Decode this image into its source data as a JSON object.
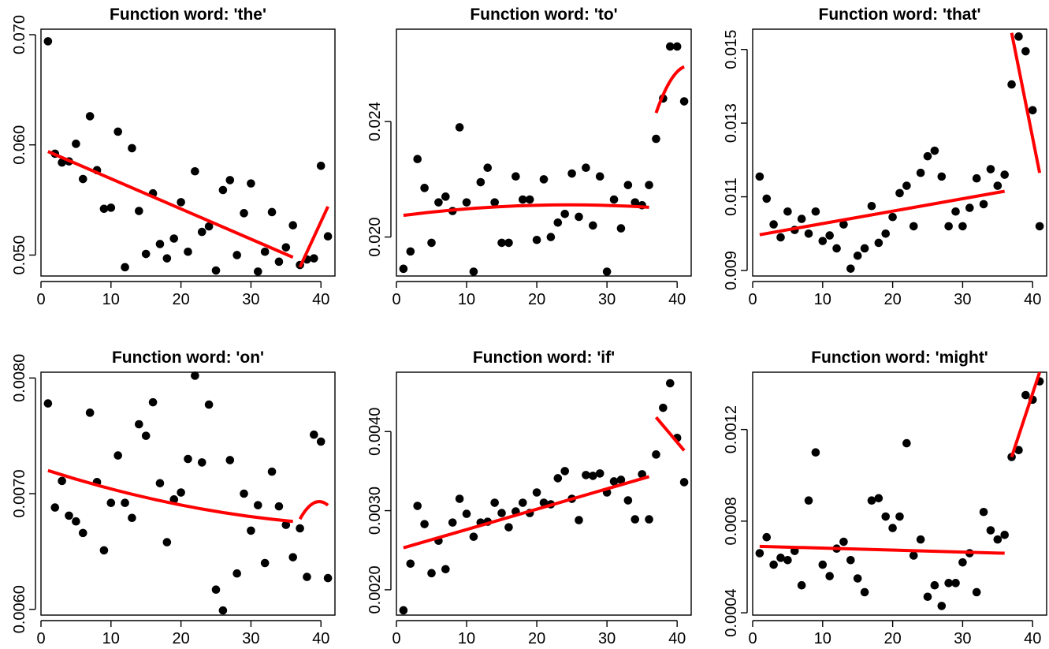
{
  "chart_data": [
    {
      "type": "scatter",
      "title": "Function word: 'the'",
      "xlim": [
        0,
        42
      ],
      "ylim": [
        0.0481,
        0.0705
      ],
      "x_ticks": [
        0,
        10,
        20,
        30,
        40
      ],
      "y_ticks": [
        0.05,
        0.06,
        0.07
      ],
      "y_tick_labels": [
        "0.050",
        "0.060",
        "0.070"
      ],
      "points": {
        "x": [
          1,
          2,
          3,
          4,
          5,
          6,
          7,
          8,
          9,
          10,
          11,
          12,
          13,
          14,
          15,
          16,
          17,
          18,
          19,
          20,
          21,
          22,
          23,
          24,
          25,
          26,
          27,
          28,
          29,
          30,
          31,
          32,
          33,
          34,
          35,
          36,
          37,
          38,
          39,
          40,
          41
        ],
        "y": [
          0.0694,
          0.0592,
          0.0584,
          0.0585,
          0.0601,
          0.0569,
          0.0626,
          0.0577,
          0.0542,
          0.0543,
          0.0612,
          0.0489,
          0.0597,
          0.054,
          0.0501,
          0.0556,
          0.051,
          0.0497,
          0.0515,
          0.0548,
          0.0503,
          0.0576,
          0.0521,
          0.0526,
          0.0486,
          0.0559,
          0.0568,
          0.05,
          0.0538,
          0.0565,
          0.0485,
          0.0503,
          0.0539,
          0.0494,
          0.0507,
          0.0527,
          0.0491,
          0.0496,
          0.0497,
          0.0581,
          0.0517
        ]
      },
      "fits": [
        {
          "x": [
            1,
            36
          ],
          "y": [
            0.0594,
            0.0498
          ],
          "curvature": 0
        },
        {
          "x": [
            37,
            41
          ],
          "y": [
            0.0489,
            0.0544
          ],
          "curvature": 0
        }
      ]
    },
    {
      "type": "scatter",
      "title": "Function word: 'to'",
      "xlim": [
        0,
        42
      ],
      "ylim": [
        0.01865,
        0.0272
      ],
      "x_ticks": [
        0,
        10,
        20,
        30,
        40
      ],
      "y_ticks": [
        0.02,
        0.024
      ],
      "y_tick_labels": [
        "0.020",
        "0.024"
      ],
      "points": {
        "x": [
          1,
          2,
          3,
          4,
          5,
          6,
          7,
          8,
          9,
          10,
          11,
          12,
          13,
          14,
          15,
          16,
          17,
          18,
          19,
          20,
          21,
          22,
          23,
          24,
          25,
          26,
          27,
          28,
          29,
          30,
          31,
          32,
          33,
          34,
          35,
          36,
          37,
          38,
          39,
          40,
          41
        ],
        "y": [
          0.0189,
          0.0195,
          0.0227,
          0.0217,
          0.0198,
          0.0212,
          0.0214,
          0.0209,
          0.0238,
          0.0212,
          0.0188,
          0.0219,
          0.0224,
          0.0212,
          0.0198,
          0.0198,
          0.0221,
          0.0213,
          0.0213,
          0.0199,
          0.022,
          0.02,
          0.0205,
          0.0208,
          0.0222,
          0.0207,
          0.0224,
          0.0204,
          0.0221,
          0.0188,
          0.0213,
          0.0203,
          0.0218,
          0.0212,
          0.0211,
          0.0218,
          0.0234,
          0.0248,
          0.0266,
          0.0266,
          0.0247
        ]
      },
      "fits": [
        {
          "x": [
            1,
            36
          ],
          "y": [
            0.02075,
            0.02103
          ],
          "curvature": 0.0002
        },
        {
          "x": [
            37,
            41
          ],
          "y": [
            0.0243,
            0.0259
          ],
          "curvature": 0.0003
        }
      ]
    },
    {
      "type": "scatter",
      "title": "Function word: 'that'",
      "xlim": [
        0,
        42
      ],
      "ylim": [
        0.00885,
        0.01555
      ],
      "x_ticks": [
        0,
        10,
        20,
        30,
        40
      ],
      "y_ticks": [
        0.009,
        0.011,
        0.013,
        0.015
      ],
      "y_tick_labels": [
        "0.009",
        "0.011",
        "0.013",
        "0.015"
      ],
      "points": {
        "x": [
          1,
          2,
          3,
          4,
          5,
          6,
          7,
          8,
          9,
          10,
          11,
          12,
          13,
          14,
          15,
          16,
          17,
          18,
          19,
          20,
          21,
          22,
          23,
          24,
          25,
          26,
          27,
          28,
          29,
          30,
          31,
          32,
          33,
          34,
          35,
          36,
          37,
          38,
          39,
          40,
          41
        ],
        "y": [
          0.01155,
          0.01095,
          0.01025,
          0.0099,
          0.0106,
          0.0101,
          0.0104,
          0.01,
          0.0106,
          0.0098,
          0.00995,
          0.0096,
          0.01025,
          0.00905,
          0.0094,
          0.0096,
          0.01075,
          0.00975,
          0.01,
          0.01045,
          0.0111,
          0.0113,
          0.0102,
          0.01165,
          0.0121,
          0.01225,
          0.01155,
          0.0102,
          0.0106,
          0.0102,
          0.0107,
          0.0115,
          0.0108,
          0.01175,
          0.0113,
          0.0116,
          0.01405,
          0.01535,
          0.01495,
          0.01335,
          0.0102
        ]
      },
      "fits": [
        {
          "x": [
            1,
            36
          ],
          "y": [
            0.00997,
            0.01115
          ],
          "curvature": 0
        },
        {
          "x": [
            37,
            41
          ],
          "y": [
            0.01545,
            0.01165
          ],
          "curvature": 0
        }
      ]
    },
    {
      "type": "scatter",
      "title": "Function word: 'on'",
      "xlim": [
        0,
        42
      ],
      "ylim": [
        0.00595,
        0.00805
      ],
      "x_ticks": [
        0,
        10,
        20,
        30,
        40
      ],
      "y_ticks": [
        0.006,
        0.007,
        0.008
      ],
      "y_tick_labels": [
        "0.0060",
        "0.0070",
        "0.0080"
      ],
      "points": {
        "x": [
          1,
          2,
          3,
          4,
          5,
          6,
          7,
          8,
          9,
          10,
          11,
          12,
          13,
          14,
          15,
          16,
          17,
          18,
          19,
          20,
          21,
          22,
          23,
          24,
          25,
          26,
          27,
          28,
          29,
          30,
          31,
          32,
          33,
          34,
          35,
          36,
          37,
          38,
          39,
          40,
          41
        ],
        "y": [
          0.00778,
          0.00688,
          0.00711,
          0.00681,
          0.00676,
          0.00666,
          0.0077,
          0.0071,
          0.00651,
          0.00692,
          0.00733,
          0.00692,
          0.00679,
          0.0076,
          0.0075,
          0.00779,
          0.00709,
          0.00658,
          0.00695,
          0.00701,
          0.0073,
          0.00802,
          0.00727,
          0.00777,
          0.00617,
          0.00599,
          0.00729,
          0.00631,
          0.007,
          0.00668,
          0.0069,
          0.0064,
          0.00719,
          0.00689,
          0.00673,
          0.00645,
          0.0067,
          0.00628,
          0.00751,
          0.00745,
          0.00627
        ]
      },
      "fits": [
        {
          "x": [
            1,
            36
          ],
          "y": [
            0.0072,
            0.00676
          ],
          "curvature": -6e-05
        },
        {
          "x": [
            37,
            41
          ],
          "y": [
            0.00678,
            0.0069
          ],
          "curvature": 8e-05
        }
      ]
    },
    {
      "type": "scatter",
      "title": "Function word: 'if'",
      "xlim": [
        0,
        42
      ],
      "ylim": [
        0.00168,
        0.00475
      ],
      "x_ticks": [
        0,
        10,
        20,
        30,
        40
      ],
      "y_ticks": [
        0.002,
        0.003,
        0.004
      ],
      "y_tick_labels": [
        "0.0020",
        "0.0030",
        "0.0040"
      ],
      "points": {
        "x": [
          1,
          2,
          3,
          4,
          5,
          6,
          7,
          8,
          9,
          10,
          11,
          12,
          13,
          14,
          15,
          16,
          17,
          18,
          19,
          20,
          21,
          22,
          23,
          24,
          25,
          26,
          27,
          28,
          29,
          30,
          31,
          32,
          33,
          34,
          35,
          36,
          37,
          38,
          39,
          40,
          41
        ],
        "y": [
          0.00174,
          0.00233,
          0.00306,
          0.00283,
          0.00221,
          0.00262,
          0.00226,
          0.00285,
          0.00315,
          0.00296,
          0.00267,
          0.00285,
          0.00286,
          0.0031,
          0.00297,
          0.00279,
          0.00299,
          0.0031,
          0.00297,
          0.00323,
          0.0031,
          0.00308,
          0.00341,
          0.0035,
          0.00315,
          0.00288,
          0.00345,
          0.00344,
          0.00347,
          0.00323,
          0.00337,
          0.00339,
          0.00313,
          0.00289,
          0.00346,
          0.00289,
          0.00371,
          0.0043,
          0.00461,
          0.00392,
          0.00336
        ]
      },
      "fits": [
        {
          "x": [
            1,
            36
          ],
          "y": [
            0.00253,
            0.00343
          ],
          "curvature": 0
        },
        {
          "x": [
            37,
            41
          ],
          "y": [
            0.00418,
            0.00376
          ],
          "curvature": 0
        }
      ]
    },
    {
      "type": "scatter",
      "title": "Function word: 'might'",
      "xlim": [
        0,
        42
      ],
      "ylim": [
        0.00039,
        0.00145
      ],
      "x_ticks": [
        0,
        10,
        20,
        30,
        40
      ],
      "y_ticks": [
        0.0004,
        0.0008,
        0.0012
      ],
      "y_tick_labels": [
        "0.0004",
        "0.0008",
        "0.0012"
      ],
      "points": {
        "x": [
          1,
          2,
          3,
          4,
          5,
          6,
          7,
          8,
          9,
          10,
          11,
          12,
          13,
          14,
          15,
          16,
          17,
          18,
          19,
          20,
          21,
          22,
          23,
          24,
          25,
          26,
          27,
          28,
          29,
          30,
          31,
          32,
          33,
          34,
          35,
          36,
          37,
          38,
          39,
          40,
          41
        ],
        "y": [
          0.00066,
          0.00073,
          0.00061,
          0.00064,
          0.00063,
          0.00067,
          0.00052,
          0.00089,
          0.0011,
          0.00061,
          0.00056,
          0.00068,
          0.00071,
          0.00063,
          0.00055,
          0.00049,
          0.00089,
          0.0009,
          0.00082,
          0.00077,
          0.00082,
          0.00114,
          0.00065,
          0.00072,
          0.00047,
          0.00052,
          0.00043,
          0.00053,
          0.00053,
          0.00062,
          0.00066,
          0.00049,
          0.00084,
          0.00076,
          0.00072,
          0.00074,
          0.00108,
          0.00111,
          0.00135,
          0.00133,
          0.00141
        ]
      },
      "fits": [
        {
          "x": [
            1,
            36
          ],
          "y": [
            0.00069,
            0.00066
          ],
          "curvature": 0
        },
        {
          "x": [
            37,
            41
          ],
          "y": [
            0.00108,
            0.00145
          ],
          "curvature": 0
        }
      ]
    }
  ],
  "colors": {
    "points": "#000000",
    "fit": "#ff0000",
    "axis": "#000000"
  }
}
